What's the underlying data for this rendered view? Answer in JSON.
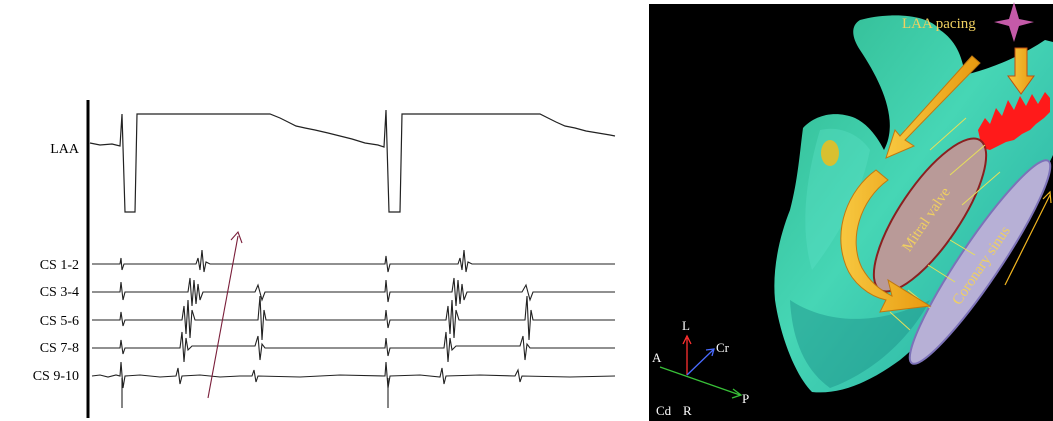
{
  "egm_panel": {
    "channels": [
      {
        "id": "laa",
        "label": "LAA"
      },
      {
        "id": "cs12",
        "label": "CS 1-2"
      },
      {
        "id": "cs34",
        "label": "CS 3-4"
      },
      {
        "id": "cs56",
        "label": "CS 5-6"
      },
      {
        "id": "cs78",
        "label": "CS 7-8"
      },
      {
        "id": "cs910",
        "label": "CS 9-10"
      }
    ]
  },
  "map_panel": {
    "pacing_label": "LAA pacing",
    "mitral_label": "Mitral valve",
    "cs_label": "Coronary sinus",
    "axes": {
      "L": "L",
      "Cr": "Cr",
      "A": "A",
      "P": "P",
      "Cd": "Cd",
      "R": "R"
    },
    "colors": {
      "background": "#000000",
      "chamber": "#3cc9a6",
      "mitral_fill": "#b99a98",
      "mitral_stroke": "#8a2020",
      "cs_fill": "#b7b0d6",
      "arrow_fill": "#f2b620",
      "label_yellow": "#f0d060",
      "pacing_star": "#c45aa8",
      "activation_red": "#ff1a1a"
    }
  }
}
